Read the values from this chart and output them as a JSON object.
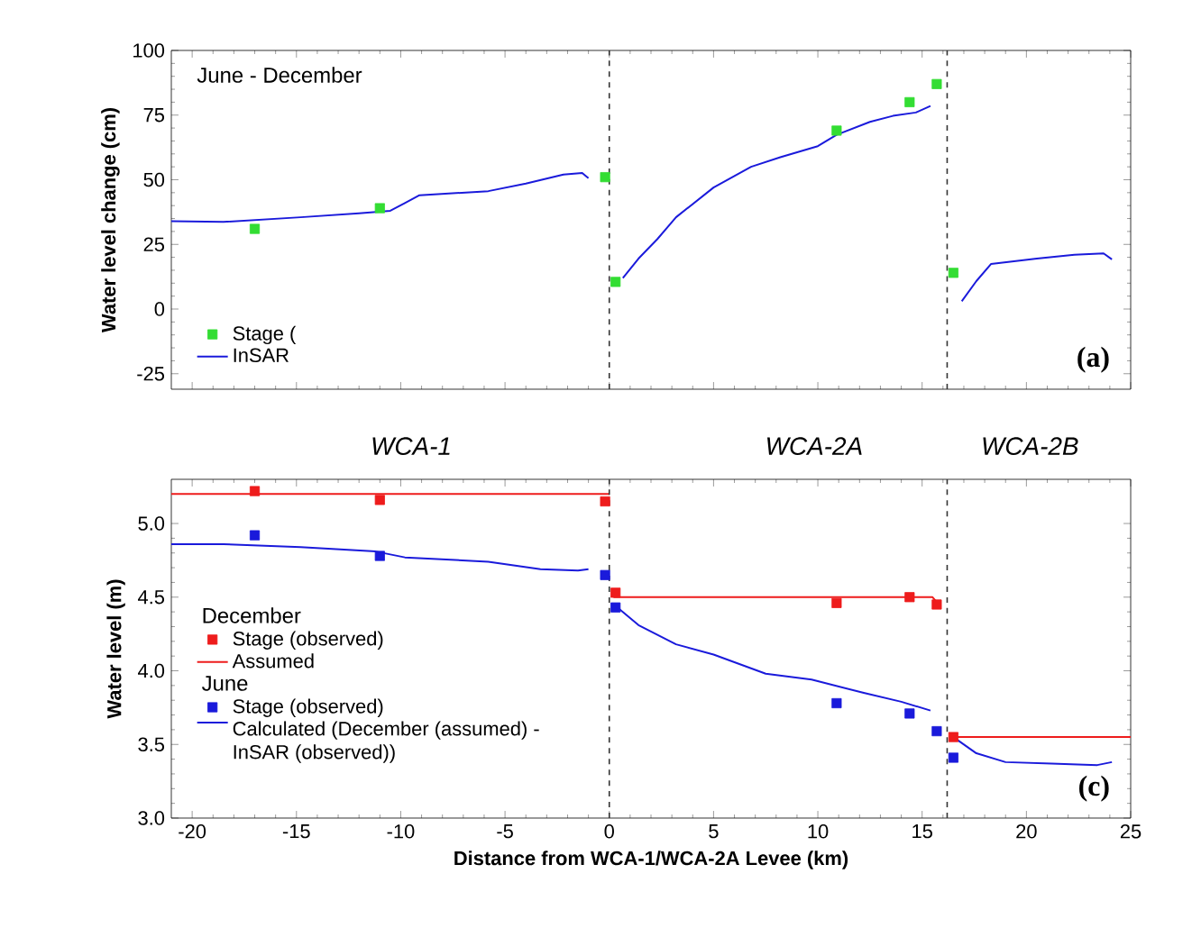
{
  "chart_data": [
    {
      "type": "line",
      "ylabel": "Water level change (cm)",
      "xlim": [
        -21,
        25
      ],
      "ylim": [
        -31,
        100
      ],
      "xticks": [
        -20,
        -15,
        -10,
        -5,
        0,
        5,
        10,
        15,
        20,
        25
      ],
      "yticks": [
        -25,
        0,
        25,
        50,
        75,
        100
      ],
      "tick_labels": "y",
      "legend": "bottom left",
      "annotations": [
        "June - December",
        "(a)"
      ],
      "ref_lines": [
        {
          "axis": "x",
          "value": 0,
          "line_style": "dashed",
          "color": "#333333"
        },
        {
          "axis": "x",
          "value": 16.2,
          "line_style": "dashed",
          "color": "#333333"
        }
      ],
      "series": [
        {
          "name": "Stage (",
          "type": "scatter",
          "marker": "square",
          "color": "#33dd33",
          "x": [
            -17,
            -11,
            -0.2,
            0.3,
            10.9,
            14.4,
            15.7,
            16.5
          ],
          "values": [
            31,
            39,
            51,
            10.5,
            69,
            80,
            87,
            14
          ]
        },
        {
          "name": "InSAR",
          "color": "#1a1adb",
          "x": [
            -21,
            -18.5,
            -14.8,
            -12,
            -10.5,
            -9.8,
            -9.1,
            -5.8,
            -4,
            -2.2,
            -1.3,
            -1,
            null,
            0.65,
            1.4,
            2.3,
            3.2,
            5,
            6.8,
            8.2,
            10,
            10.9,
            12.5,
            13.6,
            14.7,
            15.4,
            null,
            16.9,
            17.6,
            18.3,
            20.5,
            22.3,
            23.7,
            24.1
          ],
          "values": [
            34,
            33.7,
            35.5,
            37,
            38,
            41,
            44,
            45.6,
            48.5,
            52,
            52.6,
            50.6,
            null,
            12,
            19.5,
            27,
            35.5,
            47,
            55,
            58.7,
            63,
            67.4,
            72.4,
            74.7,
            76,
            78.5,
            null,
            3,
            10.8,
            17.4,
            19.5,
            21,
            21.5,
            19.2
          ]
        }
      ]
    },
    {
      "type": "line",
      "ylabel": "Water level (m)",
      "xlabel": "Distance from WCA-1/WCA-2A Levee (km)",
      "xlim": [
        -21,
        25
      ],
      "ylim": [
        3.0,
        5.3
      ],
      "xticks": [
        -20,
        -15,
        -10,
        -5,
        0,
        5,
        10,
        15,
        20,
        25
      ],
      "yticks": [
        {
          "value": 3,
          "label": "3.0"
        },
        3.5,
        {
          "value": 4,
          "label": "4.0"
        },
        4.5,
        {
          "value": 5,
          "label": "5.0"
        }
      ],
      "legend": "left",
      "annotations": [
        "WCA-1",
        "WCA-2A",
        "WCA-2B",
        "December",
        "June",
        "(c)"
      ],
      "ref_lines": [
        {
          "axis": "x",
          "value": 0,
          "line_style": "dashed",
          "color": "#333333"
        },
        {
          "axis": "x",
          "value": 16.2,
          "line_style": "dashed",
          "color": "#333333"
        }
      ],
      "series": [
        {
          "name": "Stage (observed)",
          "type": "scatter",
          "marker": "square",
          "color": "#ee1c1c",
          "x": [
            -17,
            -11,
            -0.2,
            0.3,
            10.9,
            14.4,
            15.7,
            16.5
          ],
          "values": [
            5.22,
            5.16,
            5.15,
            4.53,
            4.46,
            4.5,
            4.45,
            3.55
          ]
        },
        {
          "name": "Assumed",
          "color": "#ee1c1c",
          "x": [
            -21,
            0,
            null,
            0.2,
            15.5,
            15.8,
            null,
            16.3,
            25
          ],
          "values": [
            5.2,
            5.2,
            null,
            4.5,
            4.5,
            4.45,
            null,
            3.55,
            3.55
          ]
        },
        {
          "name": "Stage (observed)",
          "type": "scatter",
          "marker": "square",
          "color": "#1a1adb",
          "x": [
            -17,
            -11,
            -0.2,
            0.3,
            10.9,
            14.4,
            15.7,
            16.5
          ],
          "values": [
            4.92,
            4.78,
            4.65,
            4.43,
            3.78,
            3.71,
            3.59,
            3.41
          ]
        },
        {
          "name": "Calculated (December (assumed) - InSAR (observed))",
          "color": "#1a1adb",
          "x": [
            -21,
            -18.5,
            -14.8,
            -11.2,
            -9.8,
            -5.8,
            -3.3,
            -1.5,
            -1,
            null,
            0.3,
            1.4,
            3.2,
            5,
            7.5,
            9.7,
            12.2,
            14,
            15.4,
            null,
            16.5,
            17.6,
            19,
            21.2,
            23.4,
            24.1
          ],
          "values": [
            4.86,
            4.86,
            4.84,
            4.81,
            4.77,
            4.74,
            4.69,
            4.68,
            4.69,
            null,
            4.44,
            4.31,
            4.18,
            4.11,
            3.98,
            3.94,
            3.85,
            3.79,
            3.73,
            null,
            3.55,
            3.44,
            3.38,
            3.37,
            3.36,
            3.38
          ]
        }
      ]
    }
  ]
}
